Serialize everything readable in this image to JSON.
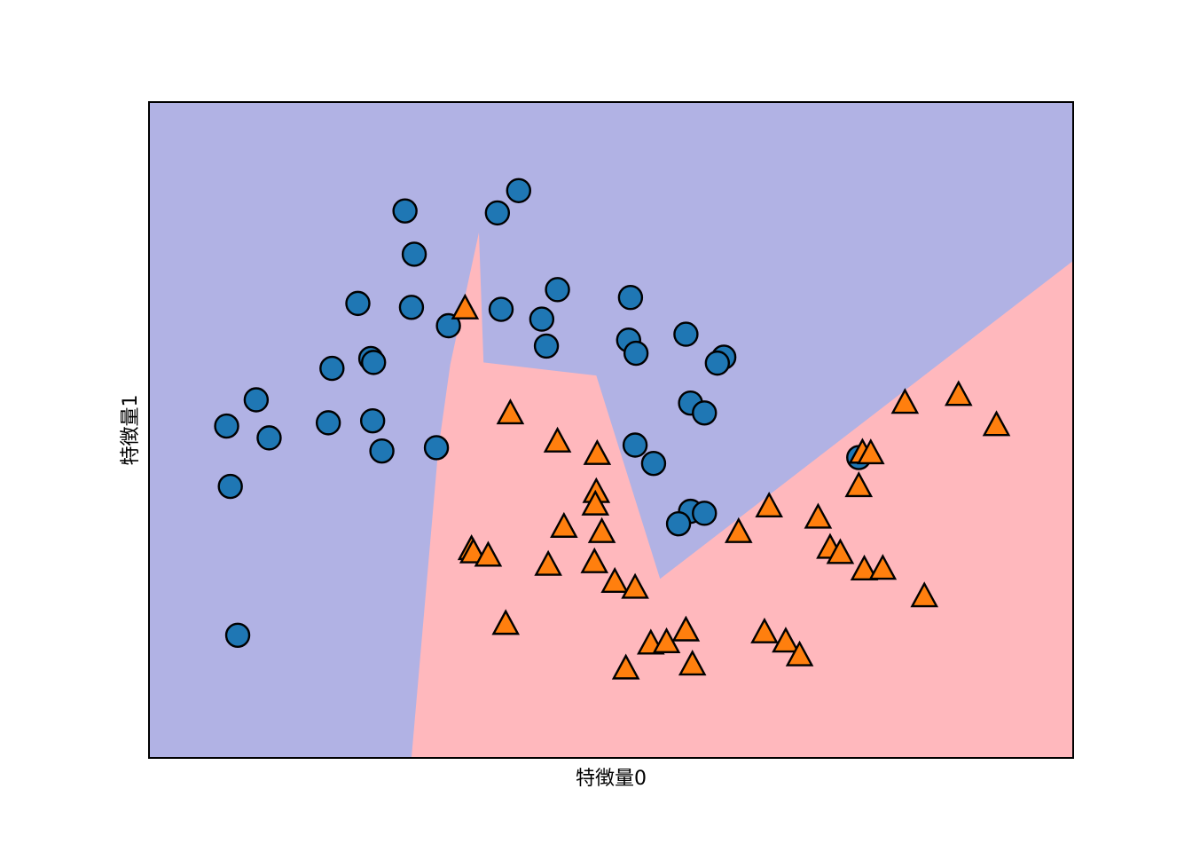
{
  "colors": {
    "class0_region": "#b1b2e4",
    "class1_region": "#ffb8bd",
    "class0_marker": "#1f77b4",
    "class1_marker": "#ff7f0e",
    "edge": "#000000"
  },
  "chart_data": {
    "type": "scatter",
    "title": "",
    "xlabel": "特徴量0",
    "ylabel": "特徴量1",
    "xlim": [
      0,
      100
    ],
    "ylim": [
      0,
      100
    ],
    "grid": false,
    "ticks": "hidden",
    "decision_boundary": [
      [
        28.4,
        0
      ],
      [
        31.3,
        47
      ],
      [
        32.6,
        60
      ],
      [
        35.7,
        80.1
      ],
      [
        36.2,
        60.3
      ],
      [
        48.4,
        58.3
      ],
      [
        55.3,
        27.3
      ],
      [
        100,
        75.8
      ]
    ],
    "series": [
      {
        "marker": "circle",
        "points": [
          [
            27.7,
            83.4
          ],
          [
            37.7,
            83.1
          ],
          [
            40,
            86.5
          ],
          [
            28.7,
            76.8
          ],
          [
            22.6,
            69.3
          ],
          [
            28.4,
            68.7
          ],
          [
            32.4,
            65.9
          ],
          [
            38.1,
            68.4
          ],
          [
            44.2,
            71.4
          ],
          [
            52.1,
            70.2
          ],
          [
            42.5,
            66.9
          ],
          [
            43,
            62.8
          ],
          [
            24,
            60.9
          ],
          [
            24.3,
            60.3
          ],
          [
            19.8,
            59.4
          ],
          [
            51.9,
            63.7
          ],
          [
            52.7,
            61.7
          ],
          [
            58.1,
            64.6
          ],
          [
            62.2,
            61.1
          ],
          [
            61.5,
            60.2
          ],
          [
            11.6,
            54.6
          ],
          [
            8.4,
            50.6
          ],
          [
            13,
            48.8
          ],
          [
            19.4,
            51.1
          ],
          [
            24.2,
            51.4
          ],
          [
            25.2,
            46.8
          ],
          [
            31.1,
            47.3
          ],
          [
            58.6,
            54.1
          ],
          [
            60.1,
            52.6
          ],
          [
            52.6,
            47.7
          ],
          [
            54.6,
            44.9
          ],
          [
            76.8,
            45.8
          ],
          [
            58.6,
            37.6
          ],
          [
            60.1,
            37.3
          ],
          [
            57.3,
            35.7
          ],
          [
            8.8,
            41.4
          ],
          [
            9.6,
            18.7
          ]
        ]
      },
      {
        "marker": "triangle",
        "points": [
          [
            34.2,
            68.5
          ],
          [
            39.1,
            52.5
          ],
          [
            44.2,
            48.2
          ],
          [
            48.5,
            46.3
          ],
          [
            48.4,
            40.5
          ],
          [
            48.3,
            38.6
          ],
          [
            44.9,
            35.2
          ],
          [
            49,
            34.4
          ],
          [
            34.9,
            31.8
          ],
          [
            35.1,
            31.3
          ],
          [
            36.7,
            30.8
          ],
          [
            43.2,
            29.4
          ],
          [
            48.2,
            29.8
          ],
          [
            50.4,
            26.8
          ],
          [
            52.6,
            25.9
          ],
          [
            38.6,
            20.4
          ],
          [
            54.3,
            17.4
          ],
          [
            56,
            17.6
          ],
          [
            58.1,
            19.4
          ],
          [
            51.6,
            13.6
          ],
          [
            58.8,
            14.2
          ],
          [
            63.8,
            34.4
          ],
          [
            67.1,
            38.3
          ],
          [
            72.4,
            36.6
          ],
          [
            73.7,
            32
          ],
          [
            74.8,
            31.2
          ],
          [
            77.4,
            28.7
          ],
          [
            79.4,
            28.8
          ],
          [
            83.9,
            24.6
          ],
          [
            66.6,
            19.1
          ],
          [
            68.9,
            17.7
          ],
          [
            70.4,
            15.6
          ],
          [
            76.8,
            41.4
          ],
          [
            77.2,
            46.5
          ],
          [
            78.1,
            46.4
          ],
          [
            81.8,
            54.1
          ],
          [
            87.6,
            55.3
          ],
          [
            91.7,
            50.7
          ]
        ]
      }
    ]
  }
}
